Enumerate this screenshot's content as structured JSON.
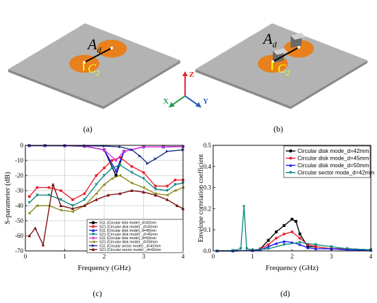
{
  "panels": {
    "a": {
      "label": "(a)",
      "dist_symbol": "A",
      "dist_sub": "d",
      "cap_symbol": "C",
      "cap_sub": "2"
    },
    "b": {
      "label": "(b)",
      "dist_symbol": "A",
      "dist_sub": "d",
      "cap_symbol": "C",
      "cap_sub": "2"
    },
    "axes": {
      "z": "Z",
      "x": "X",
      "y": "Y"
    },
    "c": {
      "label": "(c)"
    },
    "d": {
      "label": "(d)"
    }
  },
  "colors": {
    "plate_top": "#b3b3b3",
    "plate_side": "#8a8a8a",
    "disk": "#e8801c",
    "arrow": "#ffff00",
    "axis_z": "#e8212b",
    "axis_x": "#1f9a4a",
    "axis_y": "#2a5fbf"
  },
  "chart_data": [
    {
      "type": "line",
      "xlabel": "Frequency (GHz)",
      "ylabel": "S-parameter (dB)",
      "xlim": [
        0,
        4
      ],
      "ylim": [
        -70,
        0
      ],
      "xticks": [
        "0",
        "1",
        "2",
        "3",
        "4"
      ],
      "yticks": [
        "0",
        "-10",
        "-20",
        "-30",
        "-40",
        "-50",
        "-60",
        "-70"
      ],
      "grid": true,
      "legend": "bottom-right",
      "series": [
        {
          "name": "S11 (Circular disk mode)_d=42mm",
          "color": "#000000",
          "marker": "square",
          "x": [
            0.1,
            0.5,
            1.0,
            1.5,
            2.0,
            2.3,
            2.5,
            3.0,
            3.5,
            4.0
          ],
          "y": [
            -0.2,
            -0.2,
            -0.3,
            -0.6,
            -3,
            -20,
            -4,
            -1,
            -1,
            -0.8
          ]
        },
        {
          "name": "S21 (Circular disk mode) _d=42mm",
          "color": "#e8212b",
          "marker": "circle",
          "x": [
            0.1,
            0.3,
            0.6,
            0.9,
            1.2,
            1.5,
            1.8,
            2.0,
            2.2,
            2.4,
            2.7,
            3.0,
            3.3,
            3.6,
            3.8,
            4.0
          ],
          "y": [
            -34,
            -28,
            -28,
            -30,
            -36,
            -32,
            -20,
            -15,
            -10,
            -8,
            -14,
            -18,
            -27,
            -27,
            -23,
            -23
          ]
        },
        {
          "name": "S11 (Circular disk mode)_d=45mm",
          "color": "#1a1aff",
          "marker": "triangle",
          "x": [
            0.1,
            0.5,
            1.0,
            1.5,
            2.0,
            2.3,
            2.5,
            3.0,
            3.5,
            4.0
          ],
          "y": [
            -0.2,
            -0.2,
            -0.3,
            -0.5,
            -3,
            -17,
            -4,
            -1,
            -1,
            -0.8
          ]
        },
        {
          "name": "S21 (Circular disk mode) _d=45mm",
          "color": "#0e8a84",
          "marker": "triangle-down",
          "x": [
            0.1,
            0.3,
            0.6,
            0.9,
            1.2,
            1.5,
            1.8,
            2.0,
            2.2,
            2.4,
            2.7,
            3.0,
            3.3,
            3.6,
            3.8,
            4.0
          ],
          "y": [
            -38,
            -33,
            -33,
            -36,
            -40,
            -36,
            -26,
            -20,
            -15,
            -13,
            -18,
            -22,
            -29,
            -30,
            -26,
            -25
          ]
        },
        {
          "name": "S11 (Circular disk mode)_d=50mm",
          "color": "#e030e0",
          "marker": "diamond",
          "x": [
            0.1,
            0.5,
            1.0,
            1.5,
            2.0,
            2.3,
            2.5,
            3.0,
            3.5,
            4.0
          ],
          "y": [
            -0.2,
            -0.2,
            -0.3,
            -0.5,
            -3,
            -10,
            -4,
            -1,
            -1,
            -0.8
          ]
        },
        {
          "name": "S21 (Circular disk mode) _d=50mm",
          "color": "#8a8a1a",
          "marker": "triangle-left",
          "x": [
            0.1,
            0.3,
            0.6,
            0.9,
            1.2,
            1.5,
            1.8,
            2.0,
            2.2,
            2.4,
            2.7,
            3.0,
            3.3,
            3.6,
            3.8,
            4.0
          ],
          "y": [
            -45,
            -40,
            -40,
            -43,
            -44,
            -40,
            -32,
            -26,
            -22,
            -20,
            -25,
            -28,
            -32,
            -33,
            -30,
            -28
          ]
        },
        {
          "name": "S11 (Circular sector mode) _d=42mm",
          "color": "#1a2a8a",
          "marker": "triangle-right",
          "x": [
            0.1,
            0.5,
            1.0,
            1.5,
            2.0,
            2.4,
            2.7,
            2.9,
            3.1,
            3.3,
            3.6,
            4.0
          ],
          "y": [
            -0.2,
            -0.2,
            -0.2,
            -0.3,
            -0.5,
            -1,
            -3,
            -7,
            -12,
            -9,
            -4,
            -3
          ]
        },
        {
          "name": "S21 (Circular sector mode) _d=42mm",
          "color": "#7a1010",
          "marker": "star",
          "x": [
            0.1,
            0.25,
            0.45,
            0.7,
            0.9,
            1.2,
            1.5,
            1.8,
            2.1,
            2.4,
            2.7,
            3.0,
            3.3,
            3.6,
            3.85,
            4.0
          ],
          "y": [
            -60,
            -55,
            -66,
            -26,
            -40,
            -42,
            -40,
            -36,
            -33,
            -32,
            -30,
            -31,
            -33,
            -36,
            -40,
            -42
          ]
        }
      ]
    },
    {
      "type": "line",
      "xlabel": "Frequency (GHz)",
      "ylabel": "Envelope correlation coefficient",
      "xlim": [
        0,
        4
      ],
      "ylim": [
        0,
        0.5
      ],
      "xticks": [
        "0",
        "1",
        "2",
        "3",
        "4"
      ],
      "yticks": [
        "0.0",
        "0.1",
        "0.2",
        "0.3",
        "0.4",
        "0.5"
      ],
      "grid": false,
      "legend": "top-right",
      "series": [
        {
          "name": "Circular disk mode_d=42mm",
          "color": "#000000",
          "marker": "square",
          "x": [
            0.1,
            0.5,
            1.0,
            1.2,
            1.4,
            1.6,
            1.8,
            2.0,
            2.1,
            2.2,
            2.4,
            2.6,
            3.0,
            3.4,
            4.0
          ],
          "y": [
            0,
            0,
            0.002,
            0.01,
            0.05,
            0.09,
            0.12,
            0.15,
            0.14,
            0.08,
            0.02,
            0.02,
            0.01,
            0.01,
            0.005
          ]
        },
        {
          "name": "Circular disk mode_d=45mm",
          "color": "#e8212b",
          "marker": "circle",
          "x": [
            0.1,
            0.5,
            1.0,
            1.2,
            1.4,
            1.6,
            1.8,
            2.0,
            2.2,
            2.4,
            2.6,
            3.0,
            3.4,
            4.0
          ],
          "y": [
            0,
            0,
            0.002,
            0.01,
            0.03,
            0.06,
            0.08,
            0.09,
            0.06,
            0.03,
            0.02,
            0.01,
            0.01,
            0.005
          ]
        },
        {
          "name": "Circular disk mode_d=50mm",
          "color": "#1a1aff",
          "marker": "triangle",
          "x": [
            0.1,
            0.5,
            1.0,
            1.2,
            1.4,
            1.6,
            1.8,
            2.0,
            2.2,
            2.4,
            2.6,
            3.0,
            3.4,
            4.0
          ],
          "y": [
            0,
            0,
            0.002,
            0.005,
            0.02,
            0.035,
            0.045,
            0.04,
            0.03,
            0.015,
            0.01,
            0.01,
            0.005,
            0.003
          ]
        },
        {
          "name": "Circular sector mode_d=42mm",
          "color": "#0e8a84",
          "marker": "triangle-down",
          "x": [
            0.1,
            0.5,
            0.7,
            0.78,
            0.85,
            1.0,
            1.4,
            1.8,
            2.2,
            2.6,
            3.0,
            3.4,
            4.0
          ],
          "y": [
            0,
            0.002,
            0.01,
            0.21,
            0.01,
            0.005,
            0.01,
            0.03,
            0.04,
            0.03,
            0.02,
            0.01,
            0.005
          ]
        }
      ]
    }
  ]
}
